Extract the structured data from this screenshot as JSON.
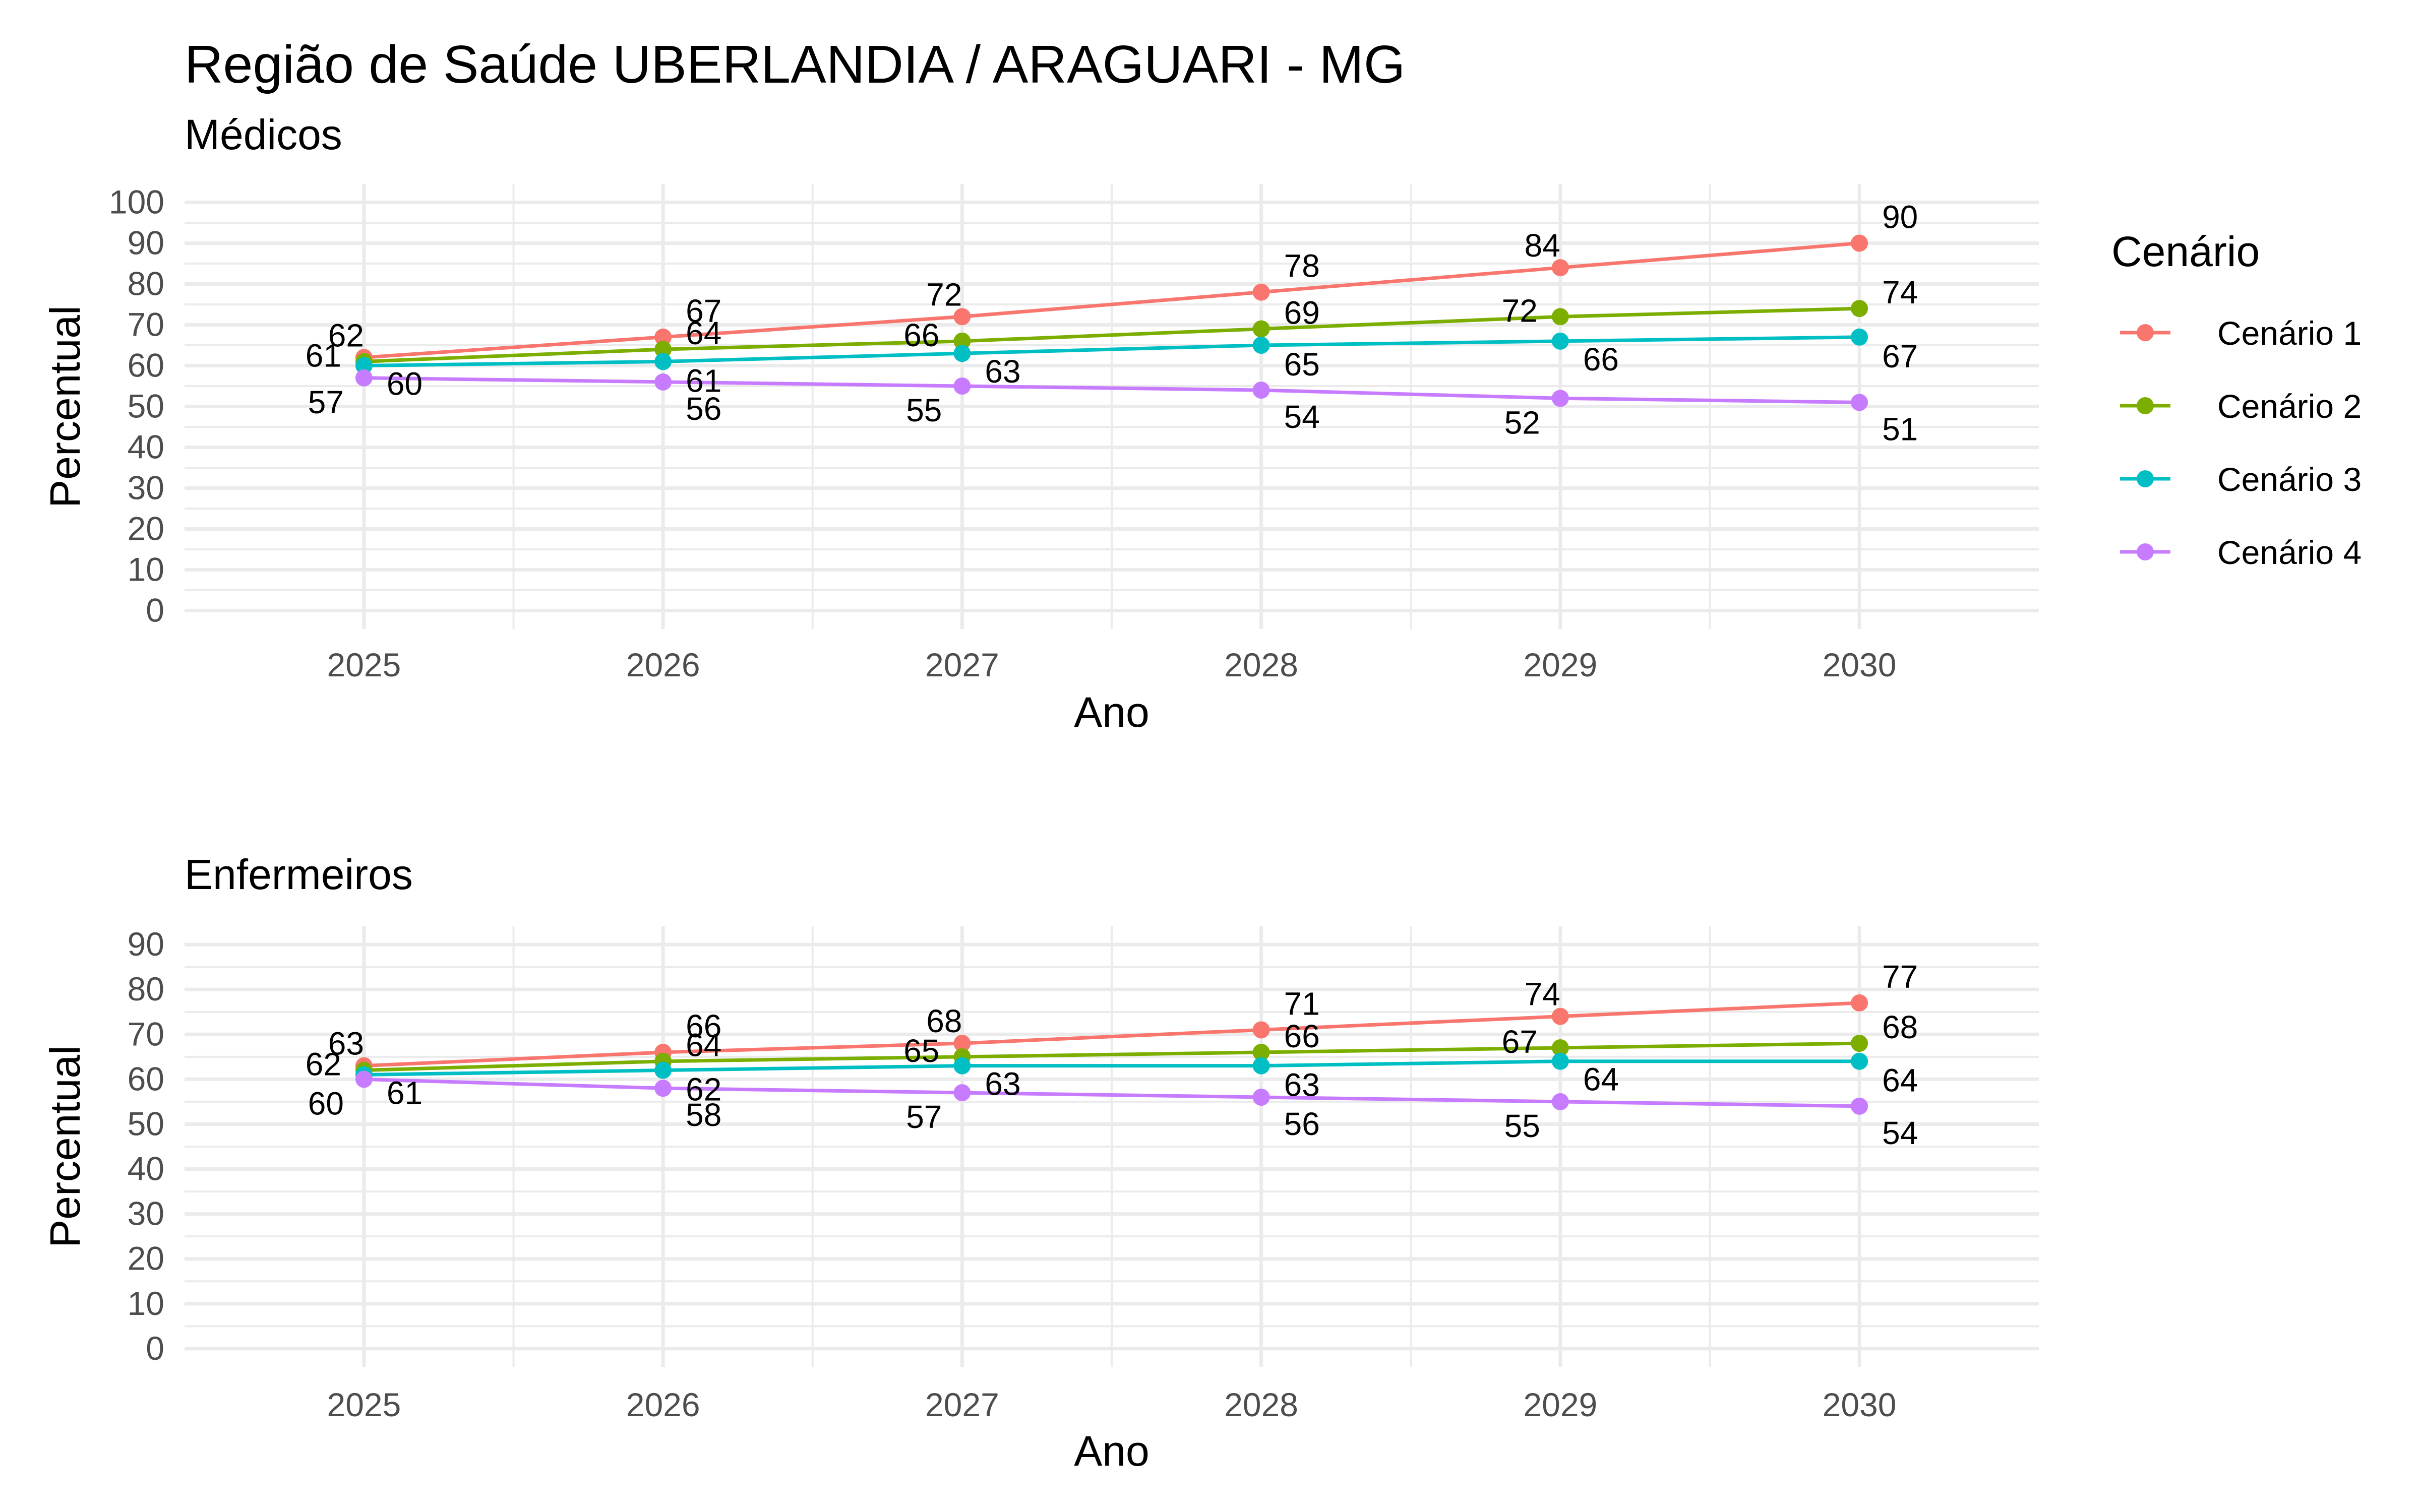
{
  "title": "Região de Saúde UBERLANDIA / ARAGUARI - MG",
  "legend": {
    "title": "Cenário",
    "items": [
      {
        "label": "Cenário 1",
        "color": "#F8766D"
      },
      {
        "label": "Cenário 2",
        "color": "#7CAE00"
      },
      {
        "label": "Cenário 3",
        "color": "#00BFC4"
      },
      {
        "label": "Cenário 4",
        "color": "#C77CFF"
      }
    ]
  },
  "chart_data": [
    {
      "type": "line",
      "subtitle": "Médicos",
      "xlabel": "Ano",
      "ylabel": "Percentual",
      "x": [
        2025,
        2026,
        2027,
        2028,
        2029,
        2030
      ],
      "ylim": [
        0,
        100
      ],
      "yticks": [
        0,
        10,
        20,
        30,
        40,
        50,
        60,
        70,
        80,
        90,
        100
      ],
      "grid": true,
      "legend_position": "right",
      "series": [
        {
          "name": "Cenário 1",
          "color": "#F8766D",
          "values": [
            62,
            67,
            72,
            78,
            84,
            90
          ],
          "data_labels": [
            "62",
            "67",
            "72",
            "78",
            "84",
            "90"
          ]
        },
        {
          "name": "Cenário 2",
          "color": "#7CAE00",
          "values": [
            61,
            64,
            66,
            69,
            72,
            74
          ],
          "data_labels": [
            "61",
            "64",
            "66",
            "69",
            "72",
            "74"
          ]
        },
        {
          "name": "Cenário 3",
          "color": "#00BFC4",
          "values": [
            60,
            61,
            63,
            65,
            66,
            67
          ],
          "data_labels": [
            "60",
            "61",
            "63",
            "65",
            "66",
            "67"
          ]
        },
        {
          "name": "Cenário 4",
          "color": "#C77CFF",
          "values": [
            57,
            56,
            55,
            54,
            52,
            51
          ],
          "data_labels": [
            "57",
            "56",
            "55",
            "54",
            "52",
            "51"
          ]
        }
      ]
    },
    {
      "type": "line",
      "subtitle": "Enfermeiros",
      "xlabel": "Ano",
      "ylabel": "Percentual",
      "x": [
        2025,
        2026,
        2027,
        2028,
        2029,
        2030
      ],
      "ylim": [
        0,
        90
      ],
      "yticks": [
        0,
        10,
        20,
        30,
        40,
        50,
        60,
        70,
        80,
        90
      ],
      "grid": true,
      "legend_position": "right",
      "series": [
        {
          "name": "Cenário 1",
          "color": "#F8766D",
          "values": [
            63,
            66,
            68,
            71,
            74,
            77
          ],
          "data_labels": [
            "63",
            "66",
            "68",
            "71",
            "74",
            "77"
          ]
        },
        {
          "name": "Cenário 2",
          "color": "#7CAE00",
          "values": [
            62,
            64,
            65,
            66,
            67,
            68
          ],
          "data_labels": [
            "62",
            "64",
            "65",
            "66",
            "67",
            "68"
          ]
        },
        {
          "name": "Cenário 3",
          "color": "#00BFC4",
          "values": [
            61,
            62,
            63,
            63,
            64,
            64
          ],
          "data_labels": [
            "61",
            "62",
            "63",
            "63",
            "64",
            "64"
          ]
        },
        {
          "name": "Cenário 4",
          "color": "#C77CFF",
          "values": [
            60,
            58,
            57,
            56,
            55,
            54
          ],
          "data_labels": [
            "60",
            "58",
            "57",
            "56",
            "55",
            "54"
          ]
        }
      ]
    }
  ]
}
